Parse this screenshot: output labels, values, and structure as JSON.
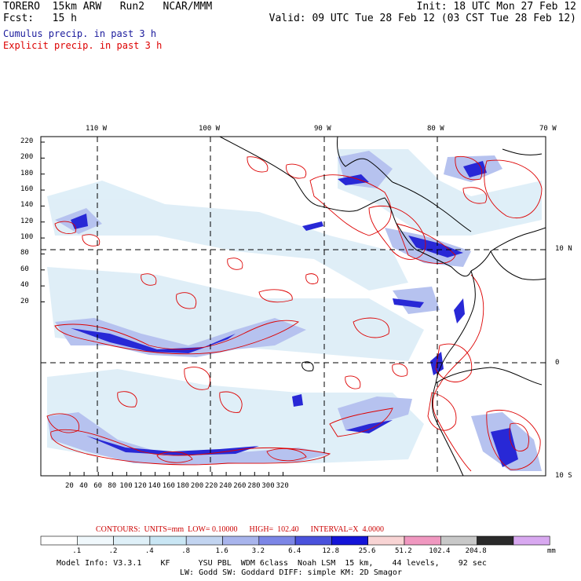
{
  "header": {
    "model": "TORERO",
    "resolution": "15km ARW",
    "run": "Run2",
    "org": "NCAR/MMM",
    "init": "Init: 18 UTC Mon 27 Feb 12",
    "fcst_label": "Fcst:",
    "fcst_value": "15 h",
    "valid": "Valid: 09 UTC Tue 28 Feb 12 (03 CST Tue 28 Feb 12)",
    "cumulus_label": "Cumulus precip. in past 3 h",
    "explicit_label": "Explicit precip. in past 3 h"
  },
  "colors": {
    "cumulus": "#1a1acc",
    "explicit": "#dd0000",
    "coast": "#000000"
  },
  "map": {
    "lon_labels": [
      "110 W",
      "100 W",
      "90 W",
      "80 W",
      "70 W"
    ],
    "lat_labels": [
      "10 N",
      "0",
      "10 S"
    ],
    "y_ticks": [
      "220",
      "200",
      "180",
      "160",
      "140",
      "120",
      "100",
      "80",
      "60",
      "40",
      "20"
    ],
    "x_ticks": [
      "20",
      "40",
      "60",
      "80",
      "100",
      "120",
      "140",
      "160",
      "180",
      "200",
      "220",
      "240",
      "260",
      "280",
      "300",
      "320"
    ]
  },
  "contours": {
    "text": "CONTOURS:  UNITS=mm  LOW= 0.10000      HIGH=  102.40      INTERVAL=X  4.0000"
  },
  "colorbar": {
    "labels": [
      ".1",
      ".2",
      ".4",
      ".8",
      "1.6",
      "3.2",
      "6.4",
      "12.8",
      "25.6",
      "51.2",
      "102.4",
      "204.8"
    ],
    "unit": "mm",
    "colors": [
      "#ffffff",
      "#f0f8fc",
      "#dff0f8",
      "#c9e6f4",
      "#c2d4f0",
      "#a8b4ec",
      "#7c86e6",
      "#4a52dc",
      "#1414d8",
      "#f8d4d4",
      "#f098c0",
      "#c8c8c8",
      "#2a2a2a",
      "#d8a8f0"
    ]
  },
  "footer": {
    "line1": "Model Info: V3.3.1    KF      YSU PBL  WDM 6class  Noah LSM  15 km,    44 levels,    92 sec",
    "line2": "LW: Godd SW: Goddard DIFF: simple KM: 2D Smagor"
  }
}
